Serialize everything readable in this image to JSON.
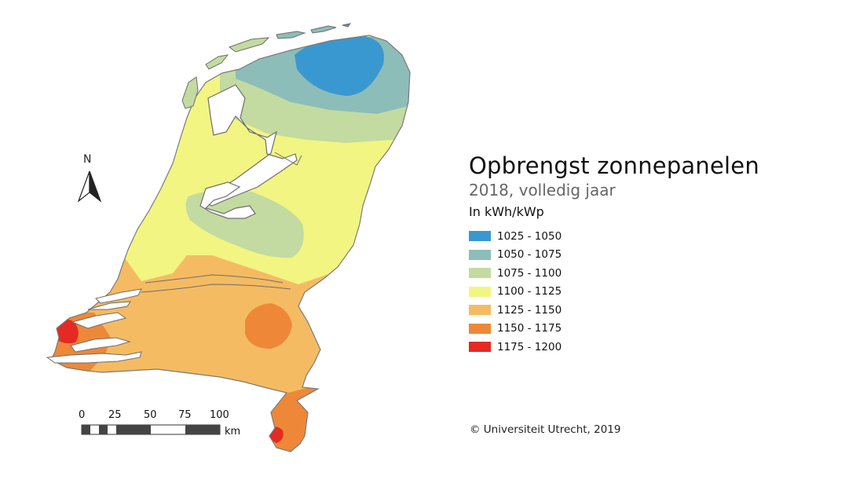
{
  "title": "Opbrengst zonnepanelen",
  "subtitle": "2018, volledig jaar",
  "units": "In kWh/kWp",
  "legend": [
    {
      "label": "1025 - 1050",
      "color": "#3a98d0"
    },
    {
      "label": "1050 - 1075",
      "color": "#8dbdb9"
    },
    {
      "label": "1075 - 1100",
      "color": "#c3dba0"
    },
    {
      "label": "1100 - 1125",
      "color": "#f2f582"
    },
    {
      "label": "1125 - 1150",
      "color": "#f5bb62"
    },
    {
      "label": "1150 - 1175",
      "color": "#ee8838"
    },
    {
      "label": "1175 - 1200",
      "color": "#e42a22"
    }
  ],
  "copyright": "© Universiteit Utrecht, 2019",
  "north_arrow": {
    "label": "N"
  },
  "scale_bar": {
    "ticks": [
      "0",
      "25",
      "50",
      "75",
      "100"
    ],
    "unit": "km"
  }
}
